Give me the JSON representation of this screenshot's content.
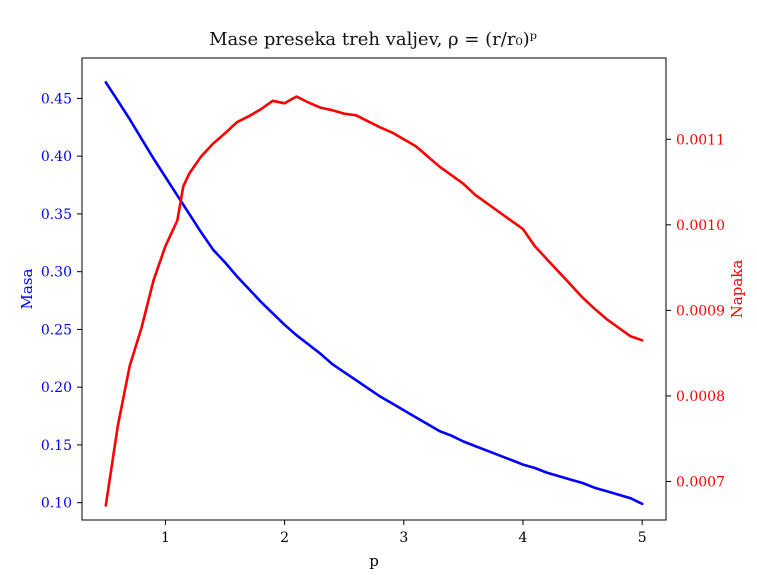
{
  "chart_data": {
    "type": "line",
    "title": "Mase preseka treh valjev, ρ = (r/r₀)ᵖ",
    "xlabel": "p",
    "ylabel_left": "Masa",
    "ylabel_right": "Napaka",
    "xlim": [
      0.3,
      5.2
    ],
    "ylim_left": [
      0.085,
      0.485
    ],
    "ylim_right": [
      0.000655,
      0.001195
    ],
    "x_ticks": [
      "1",
      "2",
      "3",
      "4",
      "5"
    ],
    "y_ticks_left": [
      "0.10",
      "0.15",
      "0.20",
      "0.25",
      "0.30",
      "0.35",
      "0.40",
      "0.45"
    ],
    "y_ticks_right": [
      "0.0007",
      "0.0008",
      "0.0009",
      "0.0010",
      "0.0011"
    ],
    "grid": false,
    "series": [
      {
        "axis": "left",
        "color": "#0000ff",
        "x": [
          0.5,
          0.6,
          0.7,
          0.8,
          0.9,
          1.0,
          1.1,
          1.2,
          1.3,
          1.4,
          1.5,
          1.6,
          1.7,
          1.8,
          1.9,
          2.0,
          2.1,
          2.2,
          2.3,
          2.4,
          2.5,
          2.6,
          2.7,
          2.8,
          2.9,
          3.0,
          3.1,
          3.2,
          3.3,
          3.4,
          3.5,
          3.6,
          3.7,
          3.8,
          3.9,
          4.0,
          4.1,
          4.2,
          4.3,
          4.4,
          4.5,
          4.6,
          4.7,
          4.8,
          4.9,
          5.0
        ],
        "values": [
          0.464,
          0.448,
          0.432,
          0.415,
          0.398,
          0.382,
          0.366,
          0.35,
          0.334,
          0.319,
          0.308,
          0.296,
          0.285,
          0.274,
          0.264,
          0.254,
          0.245,
          0.237,
          0.229,
          0.22,
          0.213,
          0.206,
          0.199,
          0.192,
          0.186,
          0.18,
          0.174,
          0.168,
          0.162,
          0.158,
          0.153,
          0.149,
          0.145,
          0.141,
          0.137,
          0.133,
          0.13,
          0.126,
          0.123,
          0.12,
          0.117,
          0.113,
          0.11,
          0.107,
          0.104,
          0.099
        ]
      },
      {
        "axis": "right",
        "color": "#ff0000",
        "x": [
          0.5,
          0.6,
          0.7,
          0.8,
          0.9,
          1.0,
          1.1,
          1.15,
          1.2,
          1.3,
          1.4,
          1.5,
          1.6,
          1.7,
          1.8,
          1.9,
          2.0,
          2.1,
          2.2,
          2.3,
          2.4,
          2.5,
          2.6,
          2.7,
          2.8,
          2.9,
          3.0,
          3.1,
          3.2,
          3.3,
          3.4,
          3.5,
          3.6,
          3.7,
          3.8,
          3.9,
          4.0,
          4.1,
          4.2,
          4.3,
          4.4,
          4.5,
          4.6,
          4.7,
          4.8,
          4.9,
          5.0
        ],
        "values": [
          0.000672,
          0.000765,
          0.000835,
          0.00088,
          0.000935,
          0.000975,
          0.001005,
          0.001045,
          0.00106,
          0.00108,
          0.001095,
          0.001107,
          0.00112,
          0.001127,
          0.001135,
          0.001145,
          0.001142,
          0.00115,
          0.001143,
          0.001137,
          0.001134,
          0.00113,
          0.001128,
          0.001121,
          0.001114,
          0.001108,
          0.0011,
          0.001092,
          0.00108,
          0.001068,
          0.001058,
          0.001048,
          0.001035,
          0.001025,
          0.001015,
          0.001005,
          0.000995,
          0.000975,
          0.00096,
          0.000945,
          0.00093,
          0.000915,
          0.000902,
          0.00089,
          0.00088,
          0.00087,
          0.000865
        ]
      }
    ]
  }
}
